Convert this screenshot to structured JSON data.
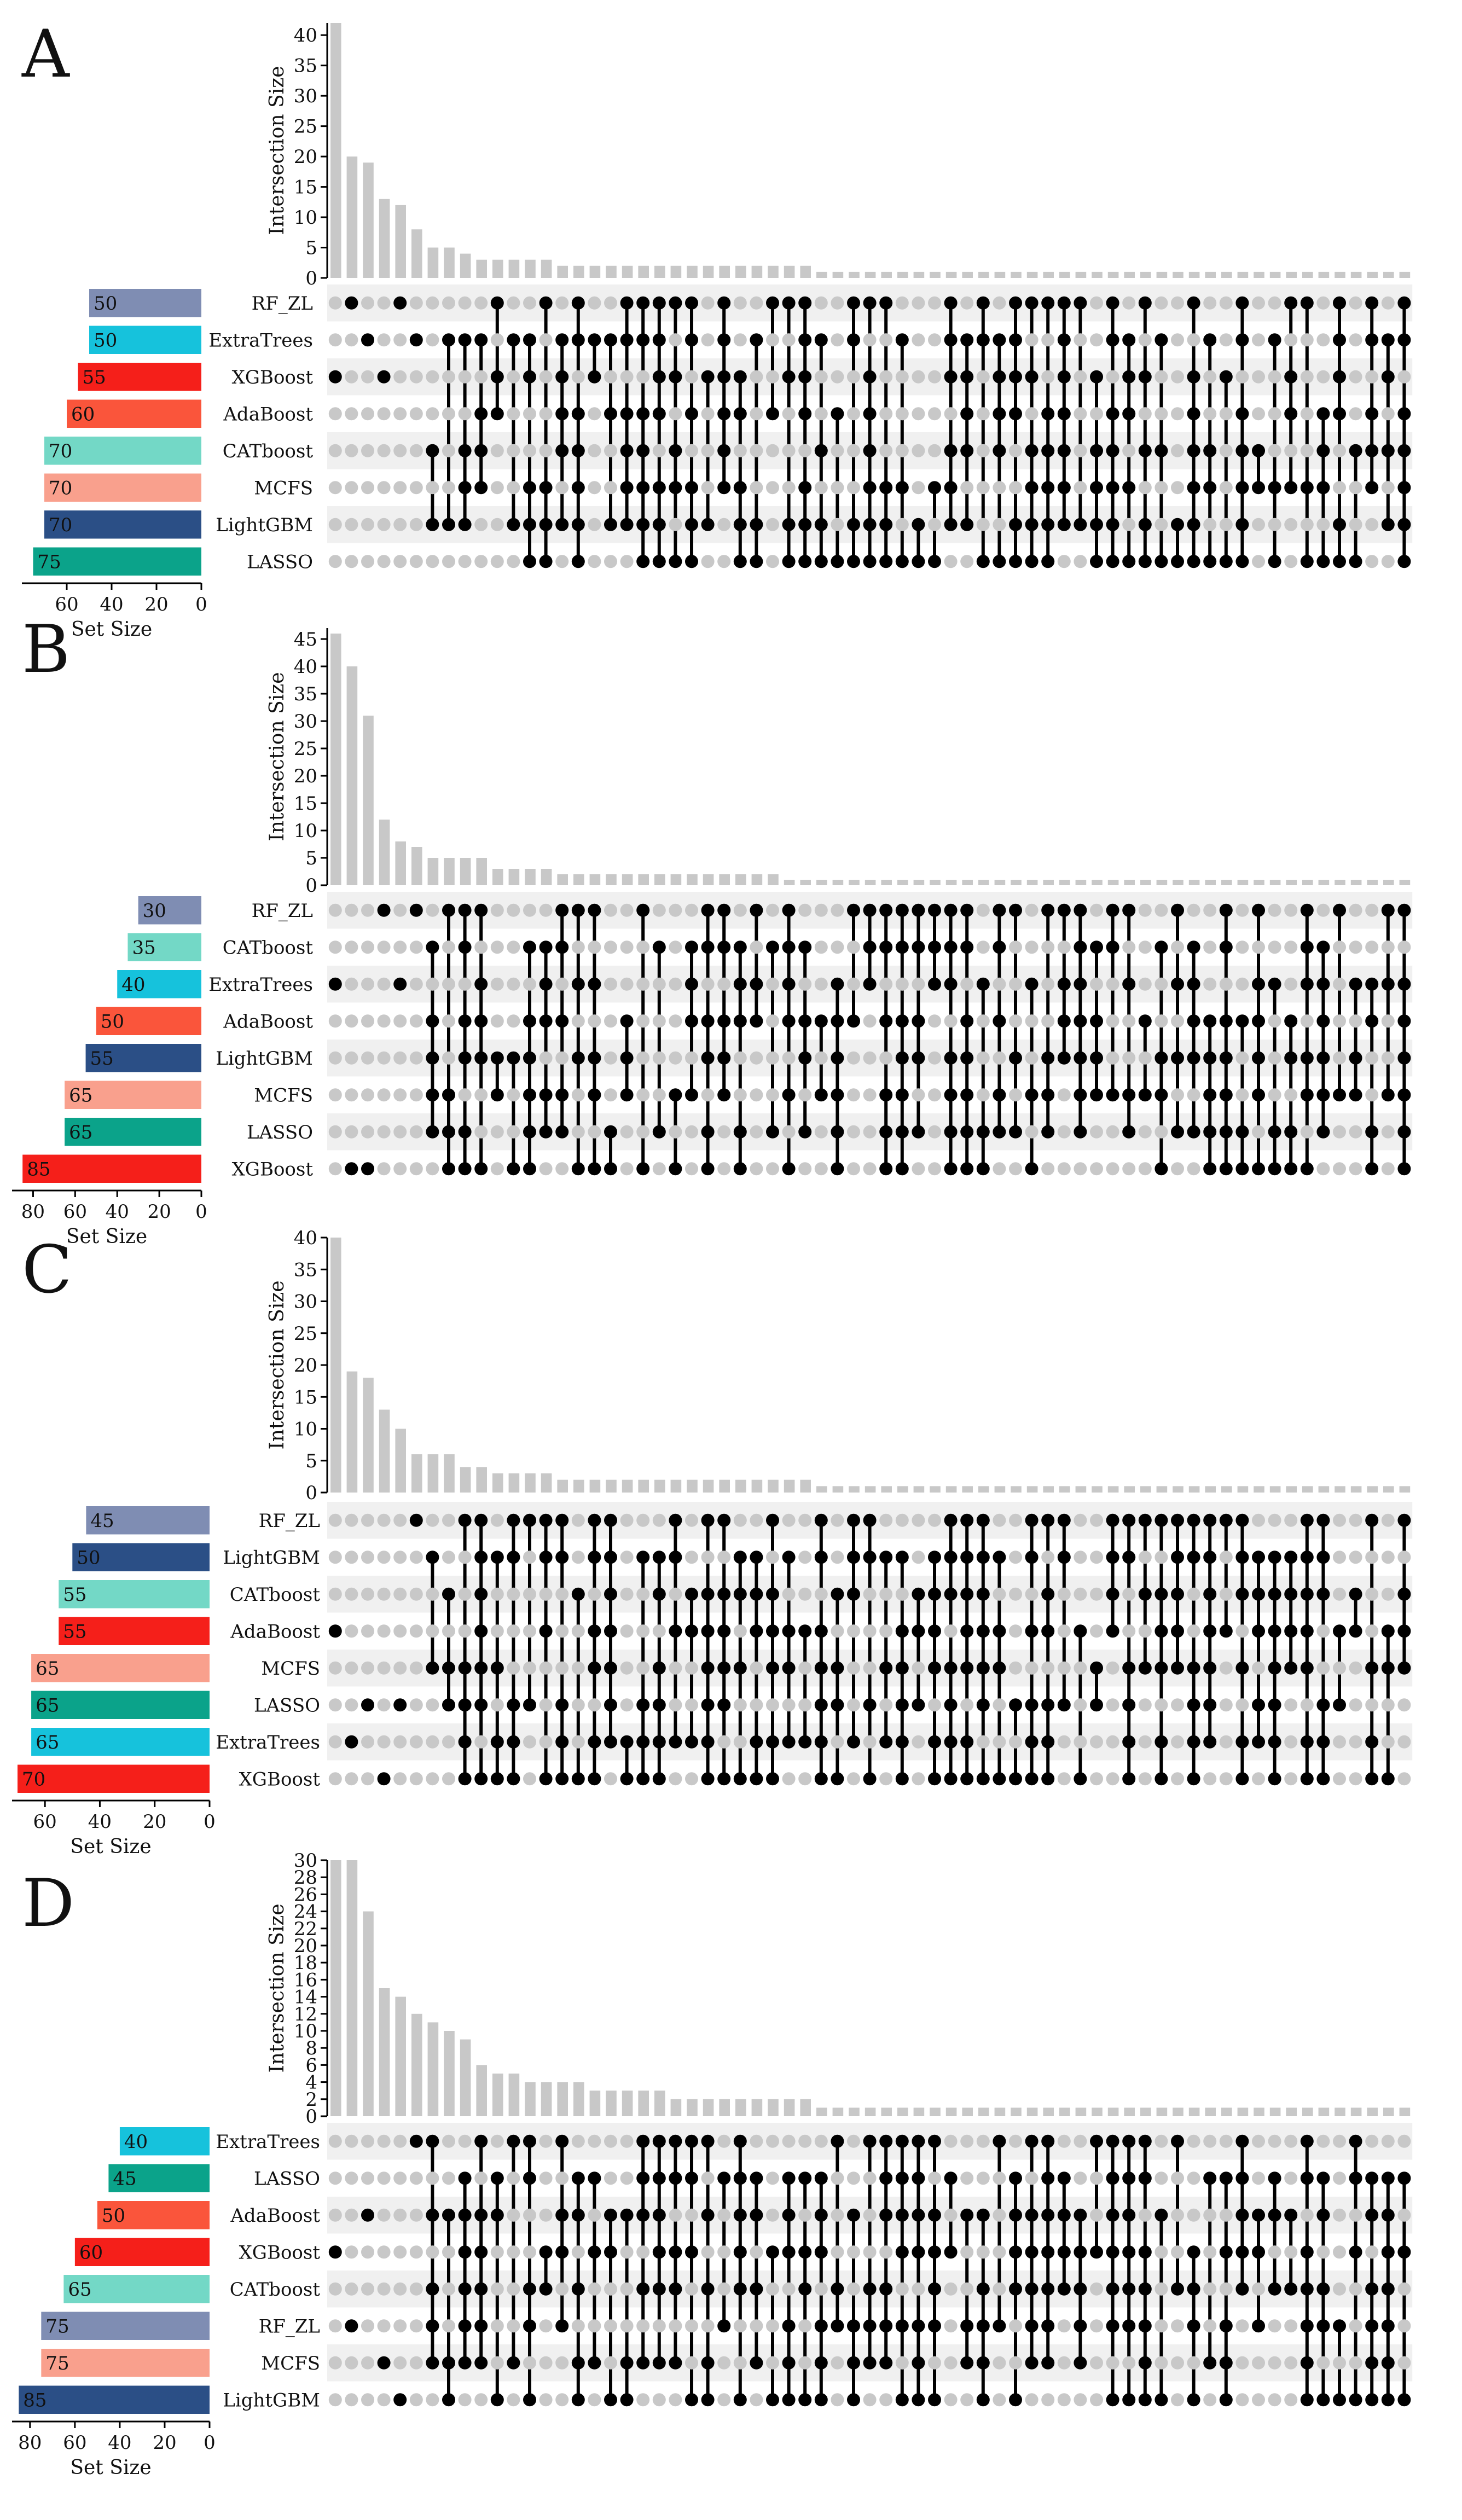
{
  "colors": {
    "bar": "#c8c8c8",
    "dot_on": "#000000",
    "dot_off": "#c8c8c8",
    "stripe": "#f0f0f0",
    "set_palette": {
      "slate": "#7f8db3",
      "cyan": "#16c2dc",
      "red": "#f51f1a",
      "orange": "#fa553b",
      "mint": "#73d8c6",
      "salmon": "#f9a08d",
      "navy": "#2b4f86",
      "teal": "#0ba38a"
    }
  },
  "axis": {
    "intersection_label": "Intersection Size",
    "set_label": "Set Size"
  },
  "chart_data": [
    {
      "type": "bar",
      "panel": "A",
      "ylabel": "Intersection Size",
      "xlabel": "Set Size",
      "ylim": [
        0,
        42
      ],
      "yticks": [
        0,
        5,
        10,
        15,
        20,
        25,
        30,
        35,
        40
      ],
      "set_ticks": [
        60,
        40,
        20,
        0
      ],
      "set_max": 80,
      "sets": [
        "RF_ZL",
        "ExtraTrees",
        "XGBoost",
        "AdaBoost",
        "CATboost",
        "MCFS",
        "LightGBM",
        "LASSO"
      ],
      "set_sizes": [
        50,
        50,
        55,
        60,
        70,
        70,
        70,
        75
      ],
      "set_colors": [
        "slate",
        "cyan",
        "red",
        "orange",
        "mint",
        "salmon",
        "navy",
        "teal"
      ],
      "values": [
        42,
        20,
        19,
        13,
        12,
        8,
        5,
        5,
        4,
        3,
        3,
        3,
        3,
        3,
        2,
        2,
        2,
        2,
        2,
        2,
        2,
        2,
        2,
        2,
        2,
        2,
        2,
        2,
        2,
        2,
        1,
        1,
        1,
        1,
        1,
        1,
        1,
        1,
        1,
        1,
        1,
        1,
        1,
        1,
        1,
        1,
        1,
        1,
        1,
        1,
        1,
        1,
        1,
        1,
        1,
        1,
        1,
        1,
        1,
        1,
        1,
        1,
        1,
        1,
        1,
        1,
        1
      ]
    },
    {
      "type": "bar",
      "panel": "B",
      "ylabel": "Intersection Size",
      "xlabel": "Set Size",
      "ylim": [
        0,
        47
      ],
      "yticks": [
        0,
        5,
        10,
        15,
        20,
        25,
        30,
        35,
        40,
        45
      ],
      "set_ticks": [
        80,
        60,
        40,
        20,
        0
      ],
      "set_max": 90,
      "sets": [
        "RF_ZL",
        "CATboost",
        "ExtraTrees",
        "AdaBoost",
        "LightGBM",
        "MCFS",
        "LASSO",
        "XGBoost"
      ],
      "set_sizes": [
        30,
        35,
        40,
        50,
        55,
        65,
        65,
        85
      ],
      "set_colors": [
        "slate",
        "mint",
        "cyan",
        "orange",
        "navy",
        "salmon",
        "teal",
        "red"
      ],
      "values": [
        46,
        40,
        31,
        12,
        8,
        7,
        5,
        5,
        5,
        5,
        3,
        3,
        3,
        3,
        2,
        2,
        2,
        2,
        2,
        2,
        2,
        2,
        2,
        2,
        2,
        2,
        2,
        2,
        1,
        1,
        1,
        1,
        1,
        1,
        1,
        1,
        1,
        1,
        1,
        1,
        1,
        1,
        1,
        1,
        1,
        1,
        1,
        1,
        1,
        1,
        1,
        1,
        1,
        1,
        1,
        1,
        1,
        1,
        1,
        1,
        1,
        1,
        1,
        1,
        1,
        1,
        1
      ]
    },
    {
      "type": "bar",
      "panel": "C",
      "ylabel": "Intersection Size",
      "xlabel": "Set Size",
      "ylim": [
        0,
        40
      ],
      "yticks": [
        0,
        5,
        10,
        15,
        20,
        25,
        30,
        35,
        40
      ],
      "set_ticks": [
        60,
        40,
        20,
        0
      ],
      "set_max": 72,
      "sets": [
        "RF_ZL",
        "LightGBM",
        "CATboost",
        "AdaBoost",
        "MCFS",
        "LASSO",
        "ExtraTrees",
        "XGBoost"
      ],
      "set_sizes": [
        45,
        50,
        55,
        55,
        65,
        65,
        65,
        70
      ],
      "set_colors": [
        "slate",
        "navy",
        "mint",
        "red",
        "salmon",
        "teal",
        "cyan",
        "red"
      ],
      "values": [
        40,
        19,
        18,
        13,
        10,
        6,
        6,
        6,
        4,
        4,
        3,
        3,
        3,
        3,
        2,
        2,
        2,
        2,
        2,
        2,
        2,
        2,
        2,
        2,
        2,
        2,
        2,
        2,
        2,
        2,
        1,
        1,
        1,
        1,
        1,
        1,
        1,
        1,
        1,
        1,
        1,
        1,
        1,
        1,
        1,
        1,
        1,
        1,
        1,
        1,
        1,
        1,
        1,
        1,
        1,
        1,
        1,
        1,
        1,
        1,
        1,
        1,
        1,
        1,
        1,
        1,
        1
      ]
    },
    {
      "type": "bar",
      "panel": "D",
      "ylabel": "Intersection Size",
      "xlabel": "Set Size",
      "ylim": [
        0,
        30
      ],
      "yticks": [
        0,
        2,
        4,
        6,
        8,
        10,
        12,
        14,
        16,
        18,
        20,
        22,
        24,
        26,
        28,
        30
      ],
      "set_ticks": [
        80,
        60,
        40,
        20,
        0
      ],
      "set_max": 88,
      "sets": [
        "ExtraTrees",
        "LASSO",
        "AdaBoost",
        "XGBoost",
        "CATboost",
        "RF_ZL",
        "MCFS",
        "LightGBM"
      ],
      "set_sizes": [
        40,
        45,
        50,
        60,
        65,
        75,
        75,
        85
      ],
      "set_colors": [
        "cyan",
        "teal",
        "orange",
        "red",
        "mint",
        "slate",
        "salmon",
        "navy"
      ],
      "values": [
        30,
        30,
        24,
        15,
        14,
        12,
        11,
        10,
        9,
        6,
        5,
        5,
        4,
        4,
        4,
        4,
        3,
        3,
        3,
        3,
        3,
        2,
        2,
        2,
        2,
        2,
        2,
        2,
        2,
        2,
        1,
        1,
        1,
        1,
        1,
        1,
        1,
        1,
        1,
        1,
        1,
        1,
        1,
        1,
        1,
        1,
        1,
        1,
        1,
        1,
        1,
        1,
        1,
        1,
        1,
        1,
        1,
        1,
        1,
        1,
        1,
        1,
        1,
        1,
        1,
        1,
        1
      ]
    }
  ]
}
